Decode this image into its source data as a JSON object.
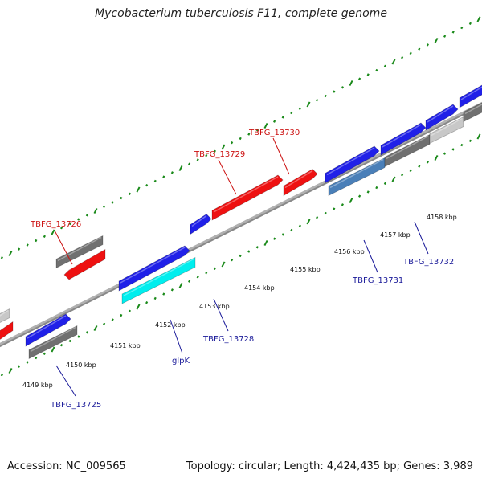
{
  "title": "Mycobacterium tuberculosis F11, complete genome",
  "footer": {
    "accession": "Accession: NC_009565",
    "summary": "Topology: circular; Length: 4,424,435 bp; Genes: 3,989"
  },
  "colors": {
    "forward_cds": "#2020e8",
    "reverse_cds": "#ee1111",
    "gene": "#707070",
    "pseudo_gene": "#c8c8c8",
    "rna_feature": "#00eeee",
    "highlight_feature": "#4a7fb8",
    "tick_mark": "#1a8a1a",
    "backbone": "#888888",
    "forward_label": "#1a1a99",
    "reverse_label": "#cc1111"
  },
  "scale_ticks": [
    "4149 kbp",
    "4150 kbp",
    "4151 kbp",
    "4152 kbp",
    "4153 kbp",
    "4154 kbp",
    "4155 kbp",
    "4156 kbp",
    "4157 kbp",
    "4158 kbp"
  ],
  "gene_labels": {
    "reverse": [
      "TBFG_13726",
      "TBFG_13729",
      "TBFG_13730"
    ],
    "forward": [
      "TBFG_13725",
      "glpK",
      "TBFG_13728",
      "TBFG_13731",
      "TBFG_13732"
    ]
  }
}
